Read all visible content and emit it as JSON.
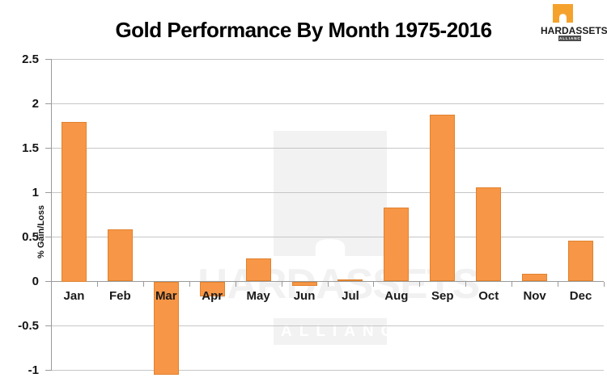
{
  "chart_data": {
    "type": "bar",
    "title": "Gold Performance By Month 1975-2016",
    "categories": [
      "Jan",
      "Feb",
      "Mar",
      "Apr",
      "May",
      "Jun",
      "Jul",
      "Aug",
      "Sep",
      "Oct",
      "Nov",
      "Dec"
    ],
    "values": [
      1.8,
      0.59,
      -1.05,
      -0.17,
      0.26,
      -0.05,
      0.02,
      0.83,
      1.88,
      1.06,
      0.09,
      0.46
    ],
    "series_name": "% Gain/Loss",
    "xlabel": "",
    "ylabel": "% Gain/Loss",
    "ylim": [
      -1,
      2.5
    ],
    "ytick_labels": [
      "2.5",
      "2",
      "1.5",
      "1",
      "0.5",
      "0",
      "-0.5",
      "-1"
    ],
    "grid": true,
    "legend": false,
    "bar_color": "#F79646",
    "bar_border_color": "#E0822E"
  },
  "logo": {
    "brand": "HARDASSETS",
    "subbrand": "ALLIANCE",
    "icon": "vault-arch-icon",
    "orange": "#F5A22D",
    "badge_color": "#4D4D4D"
  },
  "watermark": {
    "brand": "HARDASSETS",
    "subbrand": "ALLIANCE",
    "color": "#F2F2F2"
  }
}
